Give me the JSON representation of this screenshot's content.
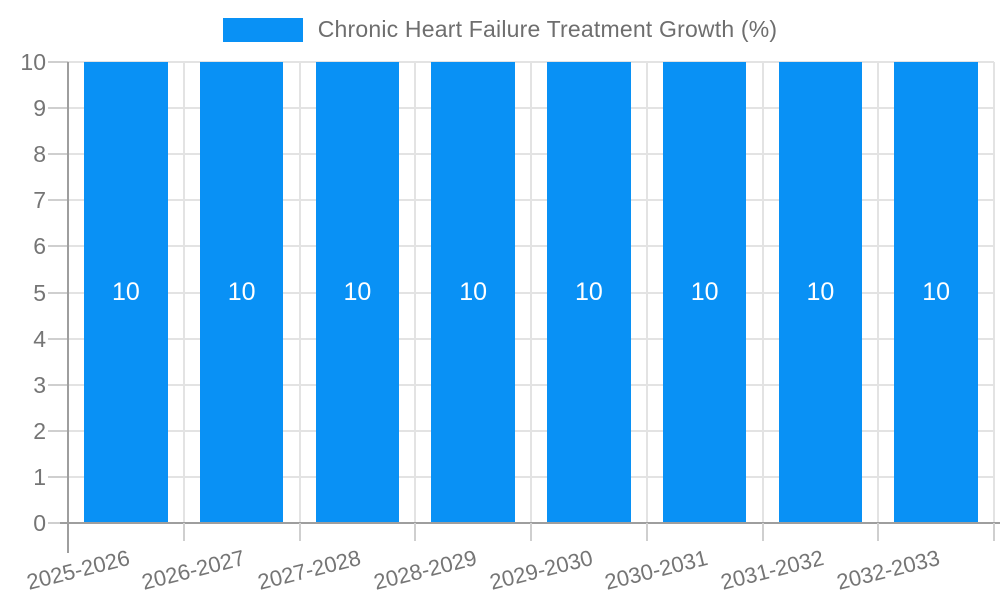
{
  "chart_data": {
    "type": "bar",
    "title": "Chronic Heart Failure Treatment Growth (%)",
    "legend_position": "top",
    "categories": [
      "2025-2026",
      "2026-2027",
      "2027-2028",
      "2028-2029",
      "2029-2030",
      "2030-2031",
      "2031-2032",
      "2032-2033"
    ],
    "series": [
      {
        "name": "Chronic Heart Failure Treatment Growth (%)",
        "values": [
          10,
          10,
          10,
          10,
          10,
          10,
          10,
          10
        ]
      }
    ],
    "bar_value_labels": [
      "10",
      "10",
      "10",
      "10",
      "10",
      "10",
      "10",
      "10"
    ],
    "xlabel": "",
    "ylabel": "",
    "ylim": [
      0,
      10
    ],
    "yticks": [
      0,
      1,
      2,
      3,
      4,
      5,
      6,
      7,
      8,
      9,
      10
    ],
    "grid": true,
    "x_tick_rotation_deg": -14,
    "colors": {
      "bar": "#0991f5",
      "bar_label": "#ffffff",
      "grid": "#e3e3e3",
      "tick": "#cfcfcf",
      "axis": "#9e9e9e",
      "text": "#757575",
      "legend_text": "#6e6e6e"
    }
  }
}
